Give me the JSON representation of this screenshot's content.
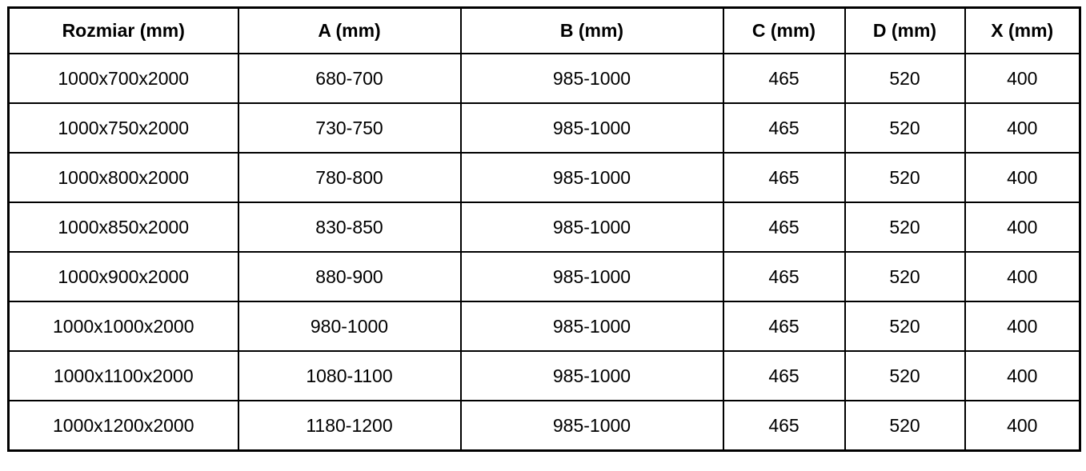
{
  "colors": {
    "border": "#000000",
    "text": "#000000",
    "background": "#ffffff"
  },
  "table": {
    "columns": [
      "Rozmiar (mm)",
      "A (mm)",
      "B (mm)",
      "C (mm)",
      "D (mm)",
      "X (mm)"
    ],
    "rows": [
      [
        "1000x700x2000",
        "680-700",
        "985-1000",
        "465",
        "520",
        "400"
      ],
      [
        "1000x750x2000",
        "730-750",
        "985-1000",
        "465",
        "520",
        "400"
      ],
      [
        "1000x800x2000",
        "780-800",
        "985-1000",
        "465",
        "520",
        "400"
      ],
      [
        "1000x850x2000",
        "830-850",
        "985-1000",
        "465",
        "520",
        "400"
      ],
      [
        "1000x900x2000",
        "880-900",
        "985-1000",
        "465",
        "520",
        "400"
      ],
      [
        "1000x1000x2000",
        "980-1000",
        "985-1000",
        "465",
        "520",
        "400"
      ],
      [
        "1000x1100x2000",
        "1080-1100",
        "985-1000",
        "465",
        "520",
        "400"
      ],
      [
        "1000x1200x2000",
        "1180-1200",
        "985-1000",
        "465",
        "520",
        "400"
      ]
    ]
  }
}
